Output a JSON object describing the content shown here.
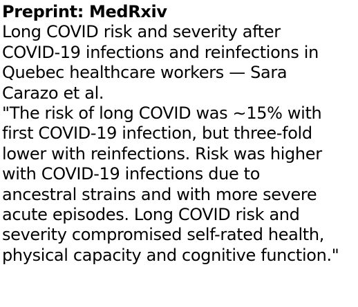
{
  "post": {
    "heading": "Preprint: MedRxiv",
    "title_lines": [
      "Long COVID risk and severity after",
      "COVID-19 infections and reinfections in",
      "Quebec healthcare workers — Sara",
      "Carazo et al."
    ],
    "quote_lines": [
      "\"The risk of long COVID was ∼15% with",
      "first COVID-19 infection, but three-fold",
      "lower with reinfections. Risk was higher",
      "with COVID-19 infections due to",
      "ancestral strains and with more severe",
      "acute episodes. Long COVID risk and",
      "severity compromised self-rated health,",
      "physical capacity and cognitive function.\""
    ]
  }
}
